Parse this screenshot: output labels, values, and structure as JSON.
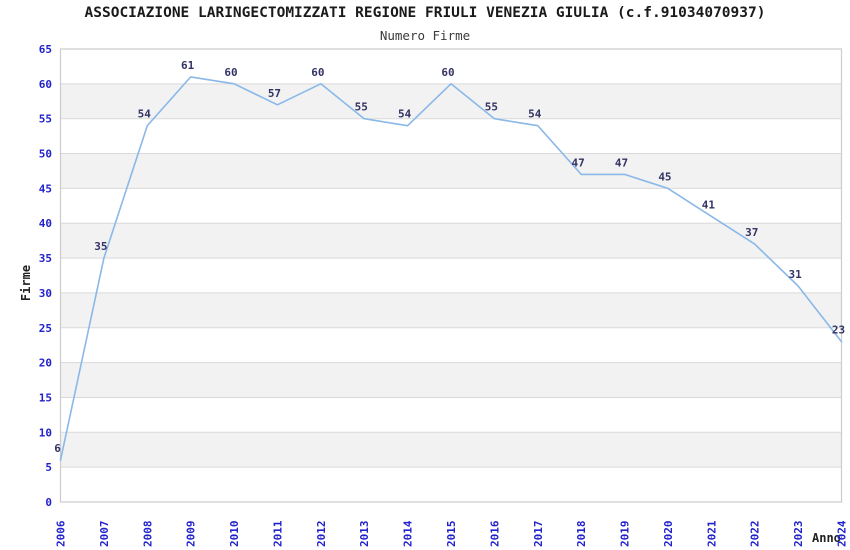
{
  "chart_data": {
    "type": "line",
    "title": "ASSOCIAZIONE LARINGECTOMIZZATI REGIONE FRIULI VENEZIA GIULIA (c.f.91034070937)",
    "subtitle": "Numero Firme",
    "xlabel": "Anno",
    "ylabel": "Firme",
    "categories": [
      "2006",
      "2007",
      "2008",
      "2009",
      "2010",
      "2011",
      "2012",
      "2013",
      "2014",
      "2015",
      "2016",
      "2017",
      "2018",
      "2019",
      "2020",
      "2021",
      "2022",
      "2023",
      "2024"
    ],
    "values": [
      6,
      35,
      54,
      61,
      60,
      57,
      60,
      55,
      54,
      60,
      55,
      54,
      47,
      47,
      45,
      41,
      37,
      31,
      23
    ],
    "series_name": "Numero Firme",
    "ylim": [
      0,
      65
    ],
    "ytick_step": 5,
    "data_labels": true,
    "grid": true,
    "legend": false,
    "band_fill": "alternating horizontal stripes of 5 units",
    "colors": {
      "line": "#8ab8e8",
      "tick_label": "#2222cc",
      "data_label": "#333366",
      "band": "#f2f2f2",
      "gridline": "#d9d9d9",
      "plot_border": "#cccccc",
      "title": "#1a1a1a",
      "subtitle": "#3a3a3a",
      "axis_title": "#222222",
      "background": "#ffffff"
    }
  }
}
